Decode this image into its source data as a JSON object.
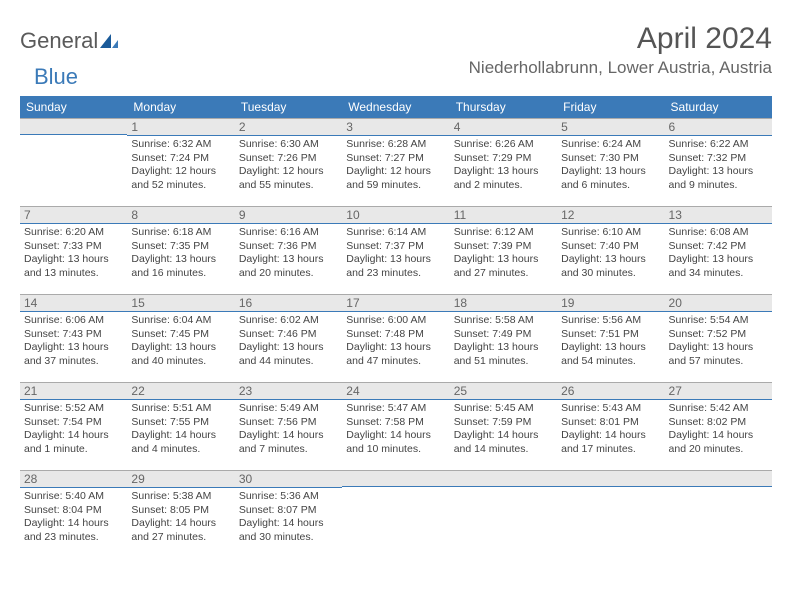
{
  "logo": {
    "text1": "General",
    "text2": "Blue"
  },
  "title": "April 2024",
  "location": "Niederhollabrunn, Lower Austria, Austria",
  "weekdays": [
    "Sunday",
    "Monday",
    "Tuesday",
    "Wednesday",
    "Thursday",
    "Friday",
    "Saturday"
  ],
  "colors": {
    "header_bg": "#3b7ab8",
    "header_text": "#ffffff",
    "daybar_bg": "#e8e8e8",
    "daybar_border": "#3b7ab8",
    "text": "#444444",
    "title": "#555555"
  },
  "weeks": [
    [
      null,
      {
        "d": "1",
        "sr": "Sunrise: 6:32 AM",
        "ss": "Sunset: 7:24 PM",
        "dl1": "Daylight: 12 hours",
        "dl2": "and 52 minutes."
      },
      {
        "d": "2",
        "sr": "Sunrise: 6:30 AM",
        "ss": "Sunset: 7:26 PM",
        "dl1": "Daylight: 12 hours",
        "dl2": "and 55 minutes."
      },
      {
        "d": "3",
        "sr": "Sunrise: 6:28 AM",
        "ss": "Sunset: 7:27 PM",
        "dl1": "Daylight: 12 hours",
        "dl2": "and 59 minutes."
      },
      {
        "d": "4",
        "sr": "Sunrise: 6:26 AM",
        "ss": "Sunset: 7:29 PM",
        "dl1": "Daylight: 13 hours",
        "dl2": "and 2 minutes."
      },
      {
        "d": "5",
        "sr": "Sunrise: 6:24 AM",
        "ss": "Sunset: 7:30 PM",
        "dl1": "Daylight: 13 hours",
        "dl2": "and 6 minutes."
      },
      {
        "d": "6",
        "sr": "Sunrise: 6:22 AM",
        "ss": "Sunset: 7:32 PM",
        "dl1": "Daylight: 13 hours",
        "dl2": "and 9 minutes."
      }
    ],
    [
      {
        "d": "7",
        "sr": "Sunrise: 6:20 AM",
        "ss": "Sunset: 7:33 PM",
        "dl1": "Daylight: 13 hours",
        "dl2": "and 13 minutes."
      },
      {
        "d": "8",
        "sr": "Sunrise: 6:18 AM",
        "ss": "Sunset: 7:35 PM",
        "dl1": "Daylight: 13 hours",
        "dl2": "and 16 minutes."
      },
      {
        "d": "9",
        "sr": "Sunrise: 6:16 AM",
        "ss": "Sunset: 7:36 PM",
        "dl1": "Daylight: 13 hours",
        "dl2": "and 20 minutes."
      },
      {
        "d": "10",
        "sr": "Sunrise: 6:14 AM",
        "ss": "Sunset: 7:37 PM",
        "dl1": "Daylight: 13 hours",
        "dl2": "and 23 minutes."
      },
      {
        "d": "11",
        "sr": "Sunrise: 6:12 AM",
        "ss": "Sunset: 7:39 PM",
        "dl1": "Daylight: 13 hours",
        "dl2": "and 27 minutes."
      },
      {
        "d": "12",
        "sr": "Sunrise: 6:10 AM",
        "ss": "Sunset: 7:40 PM",
        "dl1": "Daylight: 13 hours",
        "dl2": "and 30 minutes."
      },
      {
        "d": "13",
        "sr": "Sunrise: 6:08 AM",
        "ss": "Sunset: 7:42 PM",
        "dl1": "Daylight: 13 hours",
        "dl2": "and 34 minutes."
      }
    ],
    [
      {
        "d": "14",
        "sr": "Sunrise: 6:06 AM",
        "ss": "Sunset: 7:43 PM",
        "dl1": "Daylight: 13 hours",
        "dl2": "and 37 minutes."
      },
      {
        "d": "15",
        "sr": "Sunrise: 6:04 AM",
        "ss": "Sunset: 7:45 PM",
        "dl1": "Daylight: 13 hours",
        "dl2": "and 40 minutes."
      },
      {
        "d": "16",
        "sr": "Sunrise: 6:02 AM",
        "ss": "Sunset: 7:46 PM",
        "dl1": "Daylight: 13 hours",
        "dl2": "and 44 minutes."
      },
      {
        "d": "17",
        "sr": "Sunrise: 6:00 AM",
        "ss": "Sunset: 7:48 PM",
        "dl1": "Daylight: 13 hours",
        "dl2": "and 47 minutes."
      },
      {
        "d": "18",
        "sr": "Sunrise: 5:58 AM",
        "ss": "Sunset: 7:49 PM",
        "dl1": "Daylight: 13 hours",
        "dl2": "and 51 minutes."
      },
      {
        "d": "19",
        "sr": "Sunrise: 5:56 AM",
        "ss": "Sunset: 7:51 PM",
        "dl1": "Daylight: 13 hours",
        "dl2": "and 54 minutes."
      },
      {
        "d": "20",
        "sr": "Sunrise: 5:54 AM",
        "ss": "Sunset: 7:52 PM",
        "dl1": "Daylight: 13 hours",
        "dl2": "and 57 minutes."
      }
    ],
    [
      {
        "d": "21",
        "sr": "Sunrise: 5:52 AM",
        "ss": "Sunset: 7:54 PM",
        "dl1": "Daylight: 14 hours",
        "dl2": "and 1 minute."
      },
      {
        "d": "22",
        "sr": "Sunrise: 5:51 AM",
        "ss": "Sunset: 7:55 PM",
        "dl1": "Daylight: 14 hours",
        "dl2": "and 4 minutes."
      },
      {
        "d": "23",
        "sr": "Sunrise: 5:49 AM",
        "ss": "Sunset: 7:56 PM",
        "dl1": "Daylight: 14 hours",
        "dl2": "and 7 minutes."
      },
      {
        "d": "24",
        "sr": "Sunrise: 5:47 AM",
        "ss": "Sunset: 7:58 PM",
        "dl1": "Daylight: 14 hours",
        "dl2": "and 10 minutes."
      },
      {
        "d": "25",
        "sr": "Sunrise: 5:45 AM",
        "ss": "Sunset: 7:59 PM",
        "dl1": "Daylight: 14 hours",
        "dl2": "and 14 minutes."
      },
      {
        "d": "26",
        "sr": "Sunrise: 5:43 AM",
        "ss": "Sunset: 8:01 PM",
        "dl1": "Daylight: 14 hours",
        "dl2": "and 17 minutes."
      },
      {
        "d": "27",
        "sr": "Sunrise: 5:42 AM",
        "ss": "Sunset: 8:02 PM",
        "dl1": "Daylight: 14 hours",
        "dl2": "and 20 minutes."
      }
    ],
    [
      {
        "d": "28",
        "sr": "Sunrise: 5:40 AM",
        "ss": "Sunset: 8:04 PM",
        "dl1": "Daylight: 14 hours",
        "dl2": "and 23 minutes."
      },
      {
        "d": "29",
        "sr": "Sunrise: 5:38 AM",
        "ss": "Sunset: 8:05 PM",
        "dl1": "Daylight: 14 hours",
        "dl2": "and 27 minutes."
      },
      {
        "d": "30",
        "sr": "Sunrise: 5:36 AM",
        "ss": "Sunset: 8:07 PM",
        "dl1": "Daylight: 14 hours",
        "dl2": "and 30 minutes."
      },
      null,
      null,
      null,
      null
    ]
  ]
}
